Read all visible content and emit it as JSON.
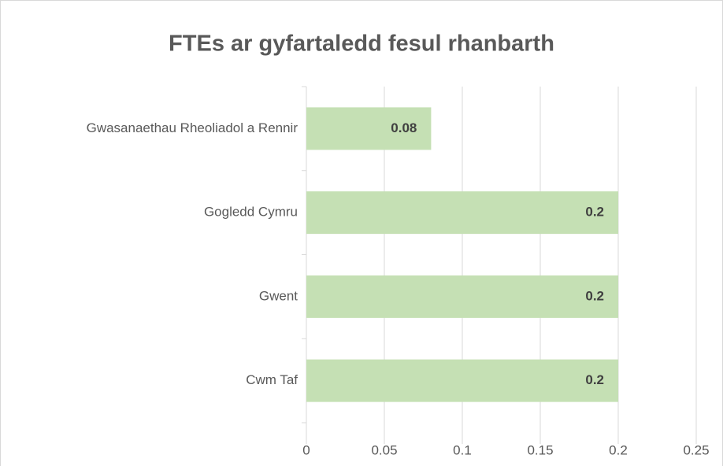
{
  "chart_data": {
    "type": "bar",
    "orientation": "horizontal",
    "title": "FTEs ar gyfartaledd fesul rhanbarth",
    "categories": [
      "Gwasanaethau Rheoliadol a Rennir",
      "Gogledd Cymru",
      "Gwent",
      "Cwm Taf"
    ],
    "values": [
      0.08,
      0.2,
      0.2,
      0.2
    ],
    "color": "#c5e0b4",
    "xlim": [
      0,
      0.25
    ],
    "xticks": [
      0,
      0.05,
      0.1,
      0.15,
      0.2,
      0.25
    ],
    "grid": true
  }
}
